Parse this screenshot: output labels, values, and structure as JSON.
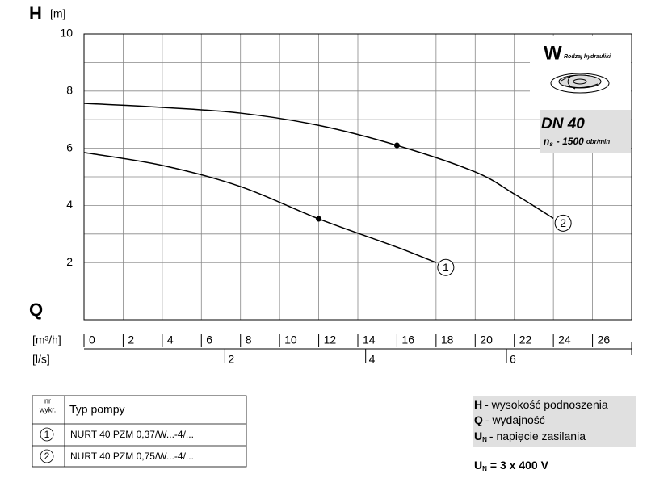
{
  "chart_data": {
    "type": "line",
    "y_label": "H",
    "y_unit": "[m]",
    "x_label": "Q",
    "x_unit": "[m³/h]",
    "x2_unit": "[l/s]",
    "xlim": [
      0,
      28
    ],
    "ylim": [
      0,
      10
    ],
    "xticks": [
      0,
      2,
      4,
      6,
      8,
      10,
      12,
      14,
      16,
      18,
      20,
      22,
      24,
      26
    ],
    "xgrid": [
      0,
      2,
      4,
      6,
      8,
      10,
      12,
      14,
      16,
      18,
      20,
      22,
      24,
      26,
      28
    ],
    "yticks": [
      2,
      4,
      6,
      8,
      10
    ],
    "ygrid": [
      0,
      1,
      2,
      3,
      4,
      5,
      6,
      7,
      8,
      9,
      10
    ],
    "x2ticks": [
      {
        "value": 7.2,
        "label": "2"
      },
      {
        "value": 14.4,
        "label": "4"
      },
      {
        "value": 21.6,
        "label": "6"
      }
    ],
    "color": "#000000",
    "series": [
      {
        "name": "1",
        "x": [
          0,
          4,
          8,
          12,
          16,
          18
        ],
        "values": [
          5.85,
          5.4,
          4.66,
          3.53,
          2.54,
          2.0
        ],
        "dot_x": 12
      },
      {
        "name": "2",
        "x": [
          0,
          4,
          8,
          12,
          16,
          20,
          22,
          24
        ],
        "values": [
          7.57,
          7.43,
          7.23,
          6.8,
          6.1,
          5.17,
          4.4,
          3.55
        ],
        "dot_x": 16
      }
    ]
  },
  "info": {
    "letter": "W",
    "caption": "Rodzaj hydrauliki",
    "dn": "DN 40",
    "n": "n",
    "n_sub": "s",
    "speed": "- 1500",
    "speed_unit": "obr/min"
  },
  "table": {
    "header": {
      "no": [
        "nr",
        "wykr."
      ],
      "type": "Typ pompy"
    },
    "rows": [
      [
        "1",
        "NURT 40 PZM 0,37/W...-4/..."
      ],
      [
        "2",
        "NURT 40 PZM 0,75/W...-4/..."
      ]
    ]
  },
  "legend": {
    "items": [
      {
        "symbol": "H",
        "text": "- wysokość podnoszenia"
      },
      {
        "symbol": "Q",
        "text": "- wydajność"
      },
      {
        "symbol": "U",
        "sub": "N",
        "text": "- napięcie zasilania"
      }
    ]
  },
  "voltage": {
    "symbol": "U",
    "sub": "N",
    "text": "= 3 x 400 V"
  }
}
